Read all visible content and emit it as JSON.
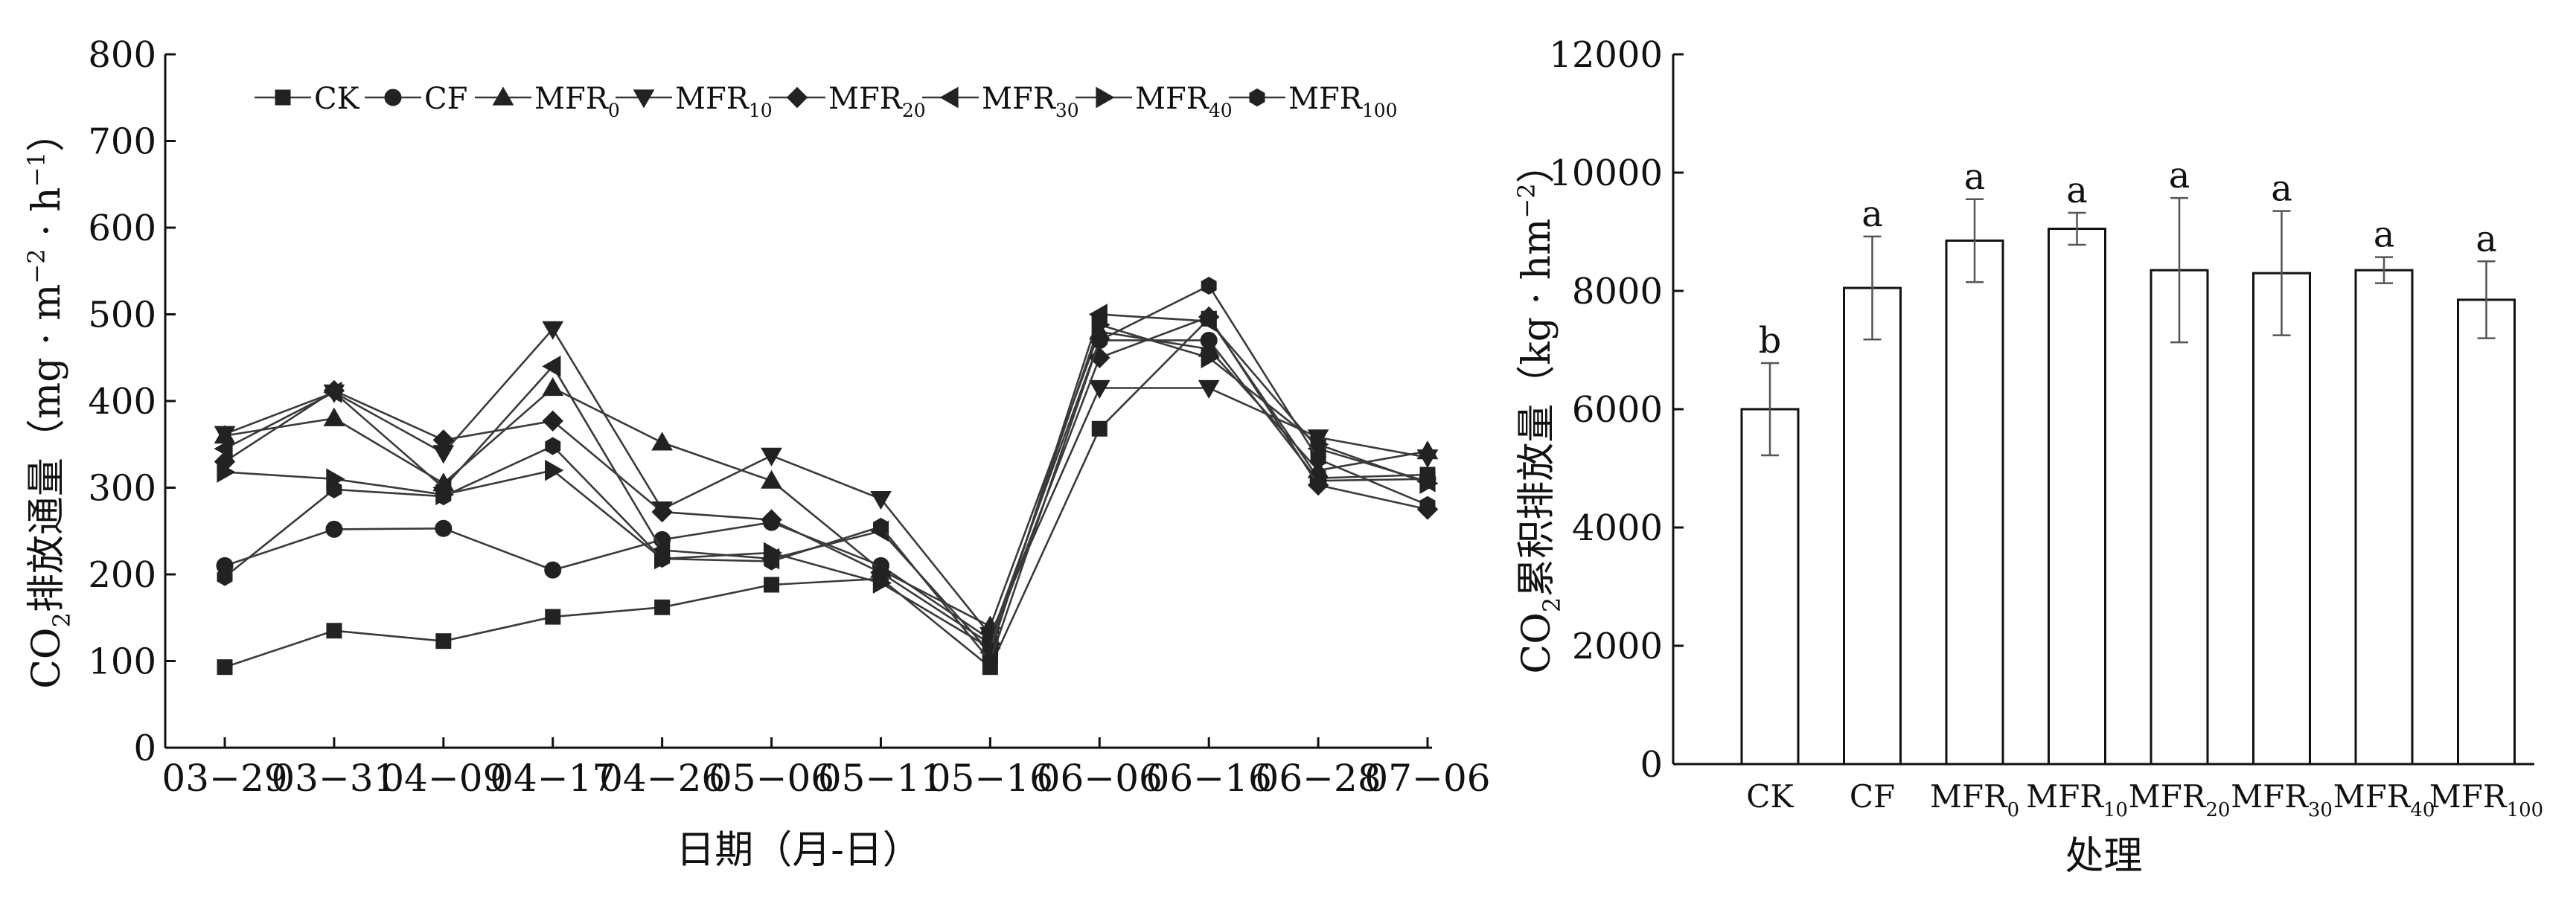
{
  "chart_data": [
    {
      "type": "line",
      "ylabel": "CO2排放通量（mg·m−2·h−1）",
      "ylabel_parts": {
        "pre": "CO",
        "sub": "2",
        "mid": "排放通量（mg · m",
        "sup1": "−2",
        "mid2": " · h",
        "sup2": "−1",
        "post": "）"
      },
      "xlabel": "日期（月-日）",
      "ylim": [
        0,
        800
      ],
      "yticks": [
        "0",
        "100",
        "200",
        "300",
        "400",
        "500",
        "600",
        "700",
        "800"
      ],
      "categories": [
        "03−29",
        "03−31",
        "04−09",
        "04−17",
        "04−26",
        "05−06",
        "05−11",
        "05−16",
        "06−06",
        "06−16",
        "06−28",
        "07−06"
      ],
      "grid": false,
      "legend_position": "top",
      "series": [
        {
          "name": "CK",
          "base": "CK",
          "sub": "",
          "marker": "square",
          "values": [
            93,
            135,
            123,
            151,
            162,
            188,
            195,
            93,
            368,
            495,
            311,
            315
          ]
        },
        {
          "name": "CF",
          "base": "CF",
          "sub": "",
          "marker": "circle",
          "values": [
            210,
            252,
            253,
            205,
            240,
            260,
            210,
            125,
            470,
            470,
            308,
            310
          ]
        },
        {
          "name": "MFR0",
          "base": "MFR",
          "sub": "0",
          "marker": "triangle-up",
          "values": [
            360,
            380,
            305,
            415,
            352,
            308,
            205,
            140,
            480,
            460,
            320,
            342
          ]
        },
        {
          "name": "MFR10",
          "base": "MFR",
          "sub": "10",
          "marker": "triangle-down",
          "values": [
            362,
            410,
            340,
            483,
            275,
            337,
            287,
            130,
            415,
            415,
            358,
            335
          ]
        },
        {
          "name": "MFR20",
          "base": "MFR",
          "sub": "20",
          "marker": "diamond",
          "values": [
            330,
            412,
            355,
            377,
            272,
            263,
            202,
            120,
            450,
            497,
            303,
            275
          ]
        },
        {
          "name": "MFR30",
          "base": "MFR",
          "sub": "30",
          "marker": "triangle-left",
          "values": [
            345,
            410,
            300,
            440,
            228,
            218,
            250,
            110,
            500,
            492,
            345,
            307
          ]
        },
        {
          "name": "MFR40",
          "base": "MFR",
          "sub": "40",
          "marker": "triangle-right",
          "values": [
            318,
            310,
            292,
            320,
            218,
            225,
            190,
            115,
            488,
            450,
            350,
            305
          ]
        },
        {
          "name": "MFR100",
          "base": "MFR",
          "sub": "100",
          "marker": "hexagon",
          "values": [
            197,
            298,
            290,
            348,
            218,
            215,
            255,
            100,
            470,
            533,
            333,
            280
          ]
        }
      ]
    },
    {
      "type": "bar",
      "ylabel": "CO2累积排放量（kg·hm−2）",
      "ylabel_parts": {
        "pre": "CO",
        "sub": "2",
        "mid": "累积排放量（kg · hm",
        "sup1": "−2",
        "post": "）"
      },
      "xlabel": "处理",
      "ylim": [
        0,
        12000
      ],
      "yticks": [
        "0",
        "2000",
        "4000",
        "6000",
        "8000",
        "10000",
        "12000"
      ],
      "categories": [
        {
          "base": "CK",
          "sub": ""
        },
        {
          "base": "CF",
          "sub": ""
        },
        {
          "base": "MFR",
          "sub": "0"
        },
        {
          "base": "MFR",
          "sub": "10"
        },
        {
          "base": "MFR",
          "sub": "20"
        },
        {
          "base": "MFR",
          "sub": "30"
        },
        {
          "base": "MFR",
          "sub": "40"
        },
        {
          "base": "MFR",
          "sub": "100"
        }
      ],
      "values": [
        6000,
        8050,
        8850,
        9050,
        8350,
        8300,
        8350,
        7850
      ],
      "errors": [
        780,
        870,
        700,
        270,
        1220,
        1050,
        220,
        650
      ],
      "letters": [
        "b",
        "a",
        "a",
        "a",
        "a",
        "a",
        "a",
        "a"
      ]
    }
  ]
}
